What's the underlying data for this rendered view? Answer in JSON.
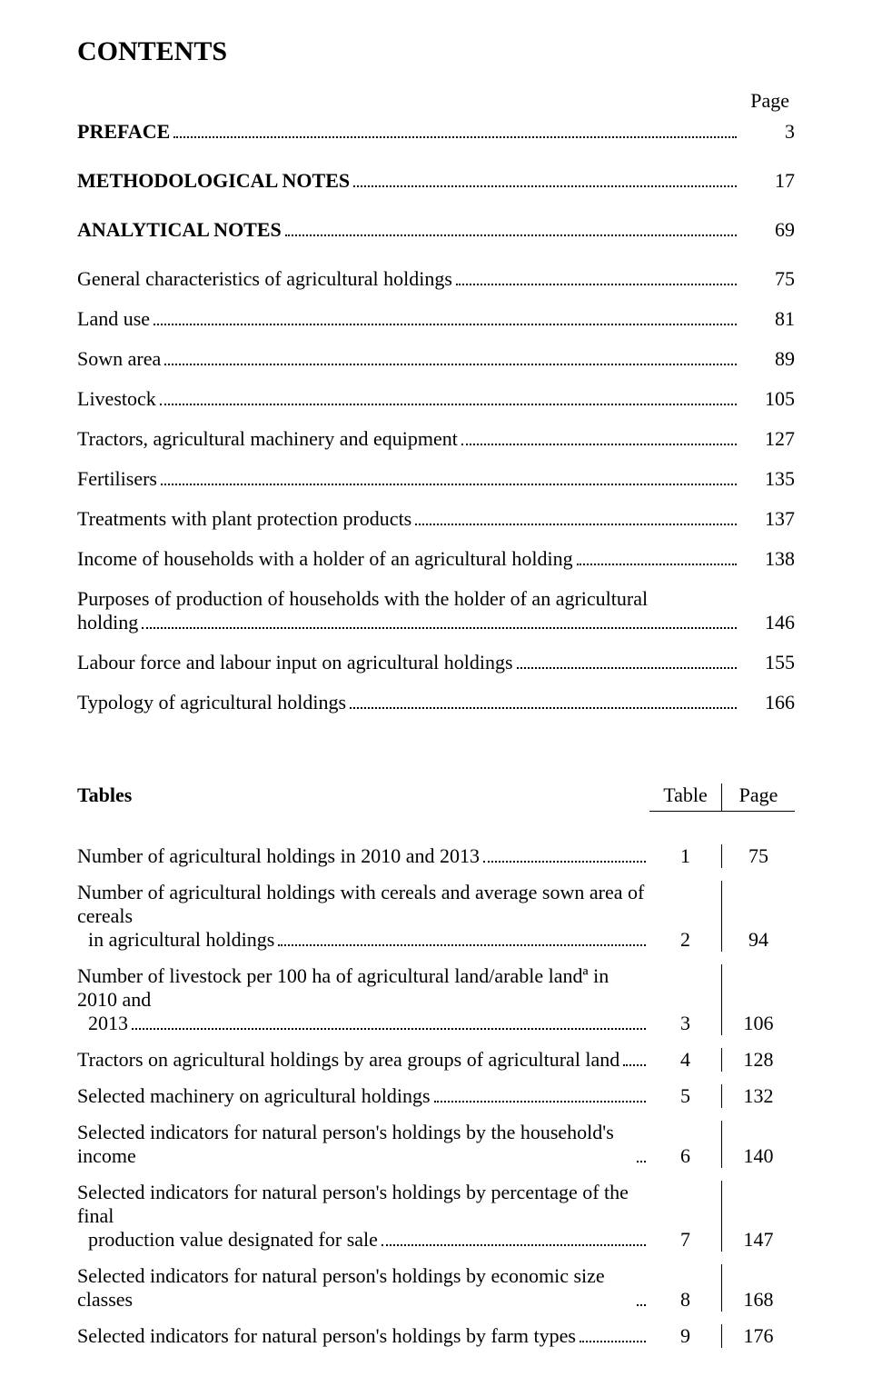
{
  "title": "CONTENTS",
  "page_label": "Page",
  "toc": [
    {
      "label": "PREFACE",
      "page": "3",
      "bold": true
    },
    {
      "label": "METHODOLOGICAL NOTES",
      "page": "17",
      "bold": true
    },
    {
      "label": "ANALYTICAL NOTES",
      "page": "69",
      "bold": true
    },
    {
      "label": "General characteristics of agricultural holdings",
      "page": "75",
      "bold": false
    },
    {
      "label": "Land use",
      "page": "81",
      "bold": false
    },
    {
      "label": "Sown area",
      "page": "89",
      "bold": false
    },
    {
      "label": "Livestock",
      "page": "105",
      "bold": false
    },
    {
      "label": "Tractors, agricultural machinery and equipment",
      "page": "127",
      "bold": false
    },
    {
      "label": "Fertilisers",
      "page": "135",
      "bold": false
    },
    {
      "label": "Treatments with plant protection products",
      "page": "137",
      "bold": false
    },
    {
      "label": "Income of households with a holder of  an agricultural holding",
      "page": "138",
      "bold": false
    },
    {
      "label_line1": "Purposes of production of  households with the holder of an agricultural",
      "label_line2": "holding",
      "page": "146",
      "bold": false,
      "multiline": true
    },
    {
      "label": "Labour force and labour input on agricultural holdings",
      "page": "155",
      "bold": false
    },
    {
      "label": "Typology of agricultural holdings",
      "page": "166",
      "bold": false
    }
  ],
  "tables_section": {
    "heading": "Tables",
    "col_table": "Table",
    "col_page": "Page"
  },
  "tables": [
    {
      "label": "Number of agricultural holdings in 2010 and 2013",
      "num": "1",
      "page": "75"
    },
    {
      "label_line1": "Number of agricultural holdings with cereals and average sown area of cereals",
      "label_line2": "in agricultural holdings",
      "num": "2",
      "page": "94",
      "multiline": true,
      "indent": true
    },
    {
      "label_line1": "Number of livestock per 100 ha of agricultural land/arable landª in 2010 and",
      "label_line2": "2013",
      "num": "3",
      "page": "106",
      "multiline": true,
      "indent": true
    },
    {
      "label": "Tractors on agricultural holdings by area groups of agricultural land",
      "num": "4",
      "page": "128"
    },
    {
      "label": "Selected machinery on agricultural holdings",
      "num": "5",
      "page": "132"
    },
    {
      "label": "Selected indicators for natural person's holdings by the household's income",
      "num": "6",
      "page": "140"
    },
    {
      "label_line1": "Selected indicators for natural person's holdings by percentage of the final",
      "label_line2": "production value designated for sale",
      "num": "7",
      "page": "147",
      "multiline": true,
      "indent": true
    },
    {
      "label": "Selected indicators for natural person's holdings by economic size classes",
      "num": "8",
      "page": "168"
    },
    {
      "label": "Selected indicators for natural person's holdings by farm types",
      "num": "9",
      "page": "176"
    }
  ]
}
